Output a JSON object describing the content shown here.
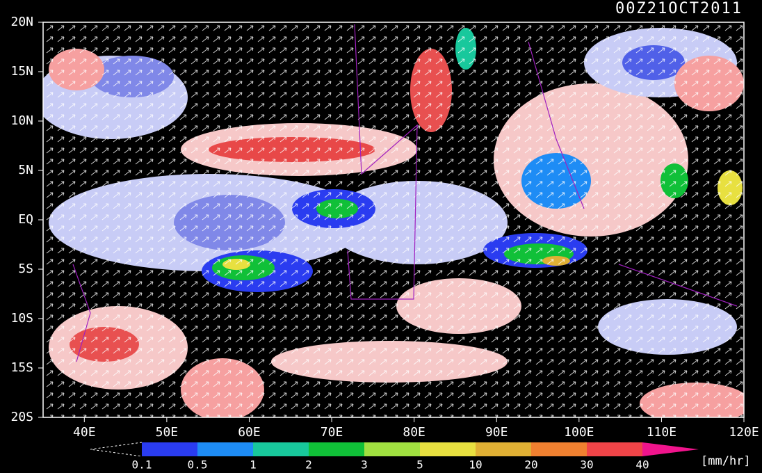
{
  "header": {
    "title": "00Z21OCT2011"
  },
  "lat_labels": [
    "20N",
    "15N",
    "10N",
    "5N",
    "EQ",
    "5S",
    "10S",
    "15S",
    "20S"
  ],
  "lon_labels": [
    "40E",
    "50E",
    "60E",
    "70E",
    "80E",
    "90E",
    "100E",
    "110E",
    "120E"
  ],
  "colorbar": {
    "labels": [
      "0.1",
      "0.5",
      "1",
      "2",
      "3",
      "5",
      "10",
      "20",
      "30",
      "40"
    ],
    "colors": [
      "#2a3cf0",
      "#1e8cf5",
      "#18c89c",
      "#10c038",
      "#a0e040",
      "#e8e040",
      "#e0b034",
      "#f08030",
      "#f04448"
    ],
    "over_color": "#f0148c",
    "unit": "[mm/hr]"
  }
}
